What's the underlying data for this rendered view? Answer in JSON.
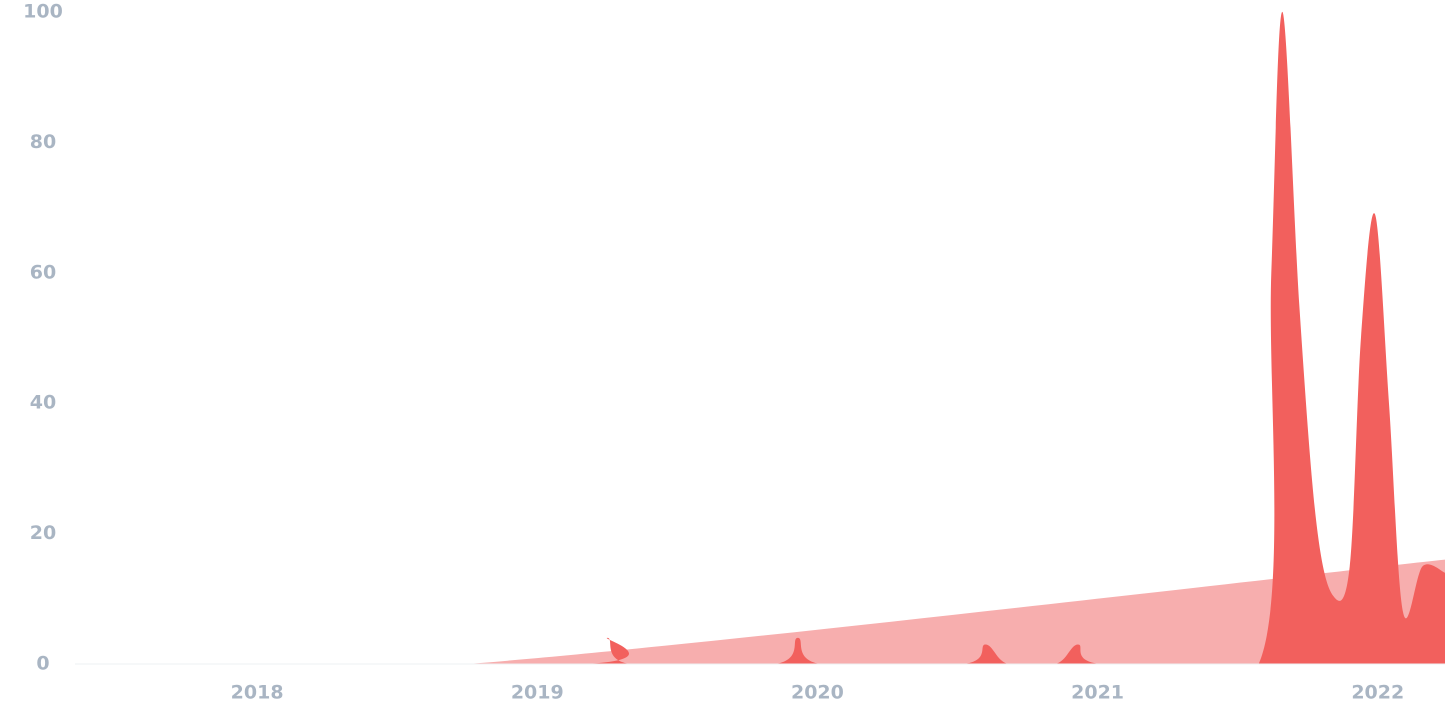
{
  "chart_data": {
    "type": "area",
    "xlim": [
      2017.35,
      2022.24
    ],
    "xticks": [
      2018,
      2019,
      2020,
      2021,
      2022
    ],
    "ylim": [
      0,
      100
    ],
    "yticks": [
      0,
      20,
      40,
      60,
      80,
      100
    ],
    "series": [
      {
        "color": "#f7aeae",
        "x": [
          2017.35,
          2018.75,
          2022.24
        ],
        "values": [
          0,
          0,
          16
        ]
      },
      {
        "color": "#f2605d",
        "x": [
          2017.35,
          2019.17,
          2019.25,
          2019.33,
          2019.85,
          2019.93,
          2020.01,
          2020.52,
          2020.6,
          2020.68,
          2020.85,
          2020.93,
          2021.01,
          2021.575,
          2021.62,
          2021.66,
          2021.72,
          2021.78,
          2021.84,
          2021.9,
          2021.94,
          2021.99,
          2022.04,
          2022.09,
          2022.16,
          2022.24
        ],
        "values": [
          0,
          0,
          4,
          0,
          0,
          4,
          0,
          0,
          3,
          0,
          0,
          3,
          0,
          0,
          60,
          100,
          55,
          22,
          10.5,
          15,
          50,
          69,
          40,
          8,
          15,
          14
        ]
      }
    ]
  }
}
